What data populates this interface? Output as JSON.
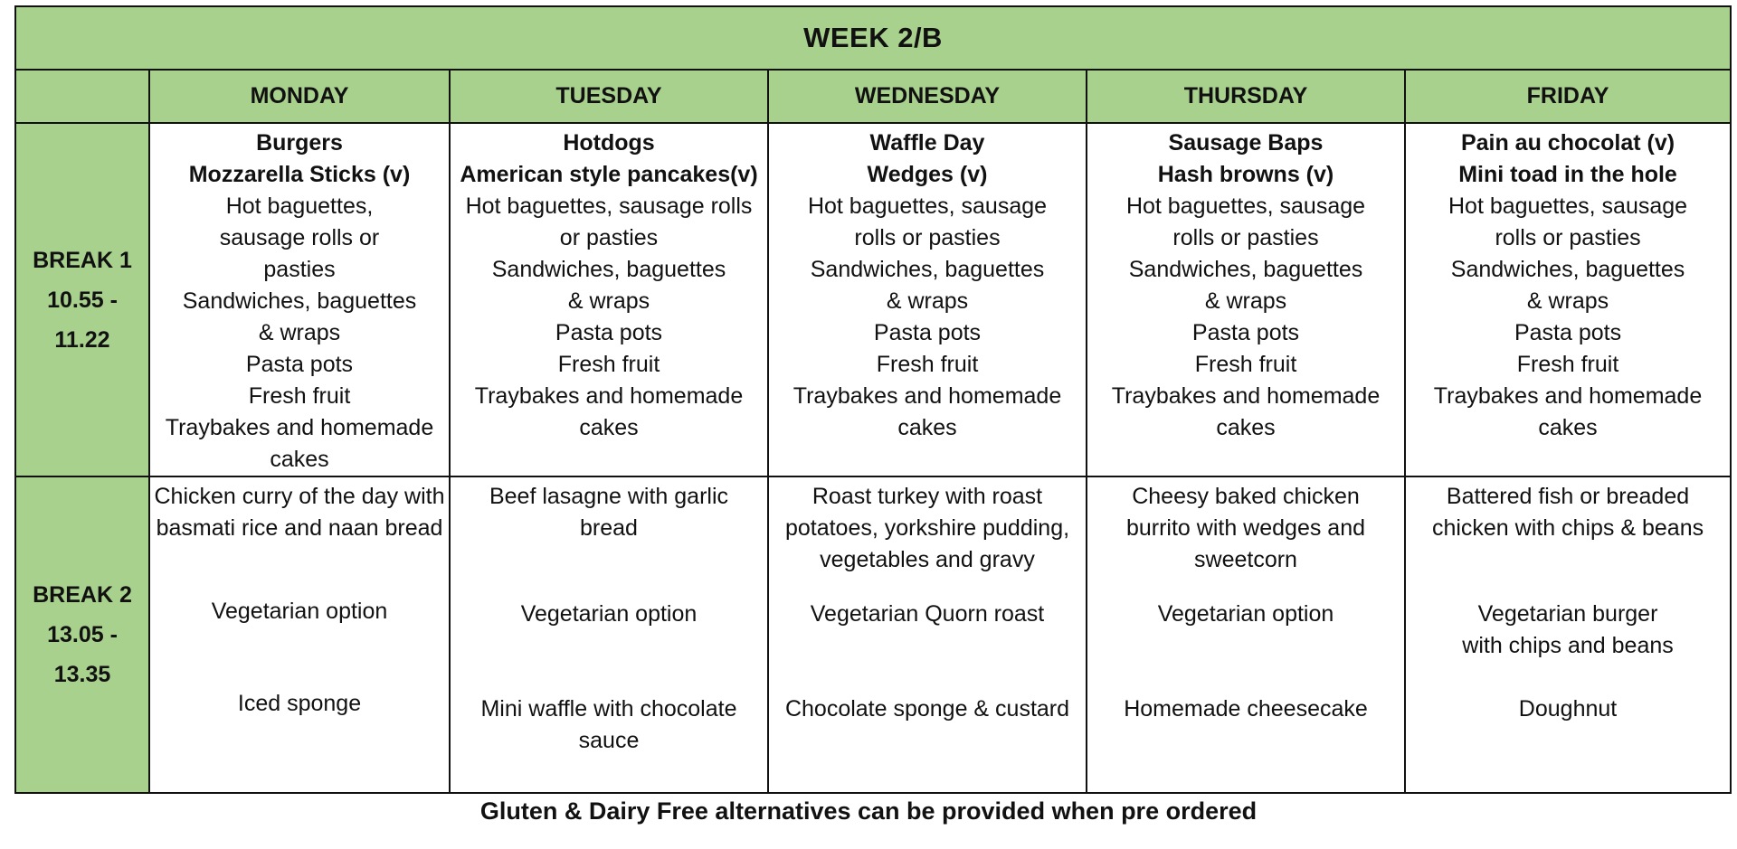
{
  "title": "WEEK 2/B",
  "days": [
    "MONDAY",
    "TUESDAY",
    "WEDNESDAY",
    "THURSDAY",
    "FRIDAY"
  ],
  "breaks": [
    {
      "name": "BREAK 1",
      "time_start": "10.55 -",
      "time_end": "11.22",
      "items": [
        {
          "special1": "Burgers",
          "special2": "Mozzarella Sticks (v)",
          "hot": "Hot baguettes, sausage rolls or pasties",
          "sandwiches": "Sandwiches, baguettes & wraps",
          "pasta": "Pasta pots",
          "fruit": "Fresh fruit",
          "cakes": "Traybakes and homemade cakes"
        },
        {
          "special1": "Hotdogs",
          "special2": "American style pancakes(v)",
          "hot": "Hot baguettes, sausage rolls or pasties",
          "sandwiches": "Sandwiches, baguettes & wraps",
          "pasta": "Pasta pots",
          "fruit": "Fresh fruit",
          "cakes": "Traybakes and homemade cakes"
        },
        {
          "special1": "Waffle Day",
          "special2": "Wedges (v)",
          "hot": "Hot baguettes, sausage rolls or pasties",
          "sandwiches": "Sandwiches, baguettes & wraps",
          "pasta": "Pasta pots",
          "fruit": "Fresh fruit",
          "cakes": "Traybakes and homemade cakes"
        },
        {
          "special1": "Sausage Baps",
          "special2": "Hash browns (v)",
          "hot": "Hot baguettes, sausage rolls or pasties",
          "sandwiches": "Sandwiches, baguettes & wraps",
          "pasta": "Pasta pots",
          "fruit": "Fresh fruit",
          "cakes": "Traybakes and homemade cakes"
        },
        {
          "special1": "Pain au chocolat (v)",
          "special2": "Mini toad in the hole",
          "hot": "Hot baguettes, sausage rolls or pasties",
          "sandwiches": "Sandwiches, baguettes & wraps",
          "pasta": "Pasta pots",
          "fruit": "Fresh fruit",
          "cakes": "Traybakes and homemade cakes"
        }
      ]
    },
    {
      "name": "BREAK 2",
      "time_start": "13.05 -",
      "time_end": "13.35",
      "items": [
        {
          "main": "Chicken curry of the day with basmati rice and naan bread",
          "veg": "Vegetarian option",
          "dessert": "Iced sponge"
        },
        {
          "main": "Beef lasagne with garlic bread",
          "veg": "Vegetarian option",
          "dessert": "Mini waffle with chocolate sauce"
        },
        {
          "main": "Roast turkey with roast potatoes, yorkshire pudding, vegetables and gravy",
          "veg": "Vegetarian Quorn roast",
          "dessert": "Chocolate sponge & custard"
        },
        {
          "main": "Cheesy baked chicken burrito with wedges and sweetcorn",
          "veg": "Vegetarian option",
          "dessert": "Homemade cheesecake"
        },
        {
          "main": "Battered fish or breaded chicken with chips & beans",
          "veg": "Vegetarian burger with chips and beans",
          "dessert": "Doughnut"
        }
      ]
    }
  ],
  "footnote": "Gluten & Dairy Free alternatives can be provided when pre ordered",
  "colors": {
    "header_green": "#a9d18e",
    "border": "#111111"
  }
}
